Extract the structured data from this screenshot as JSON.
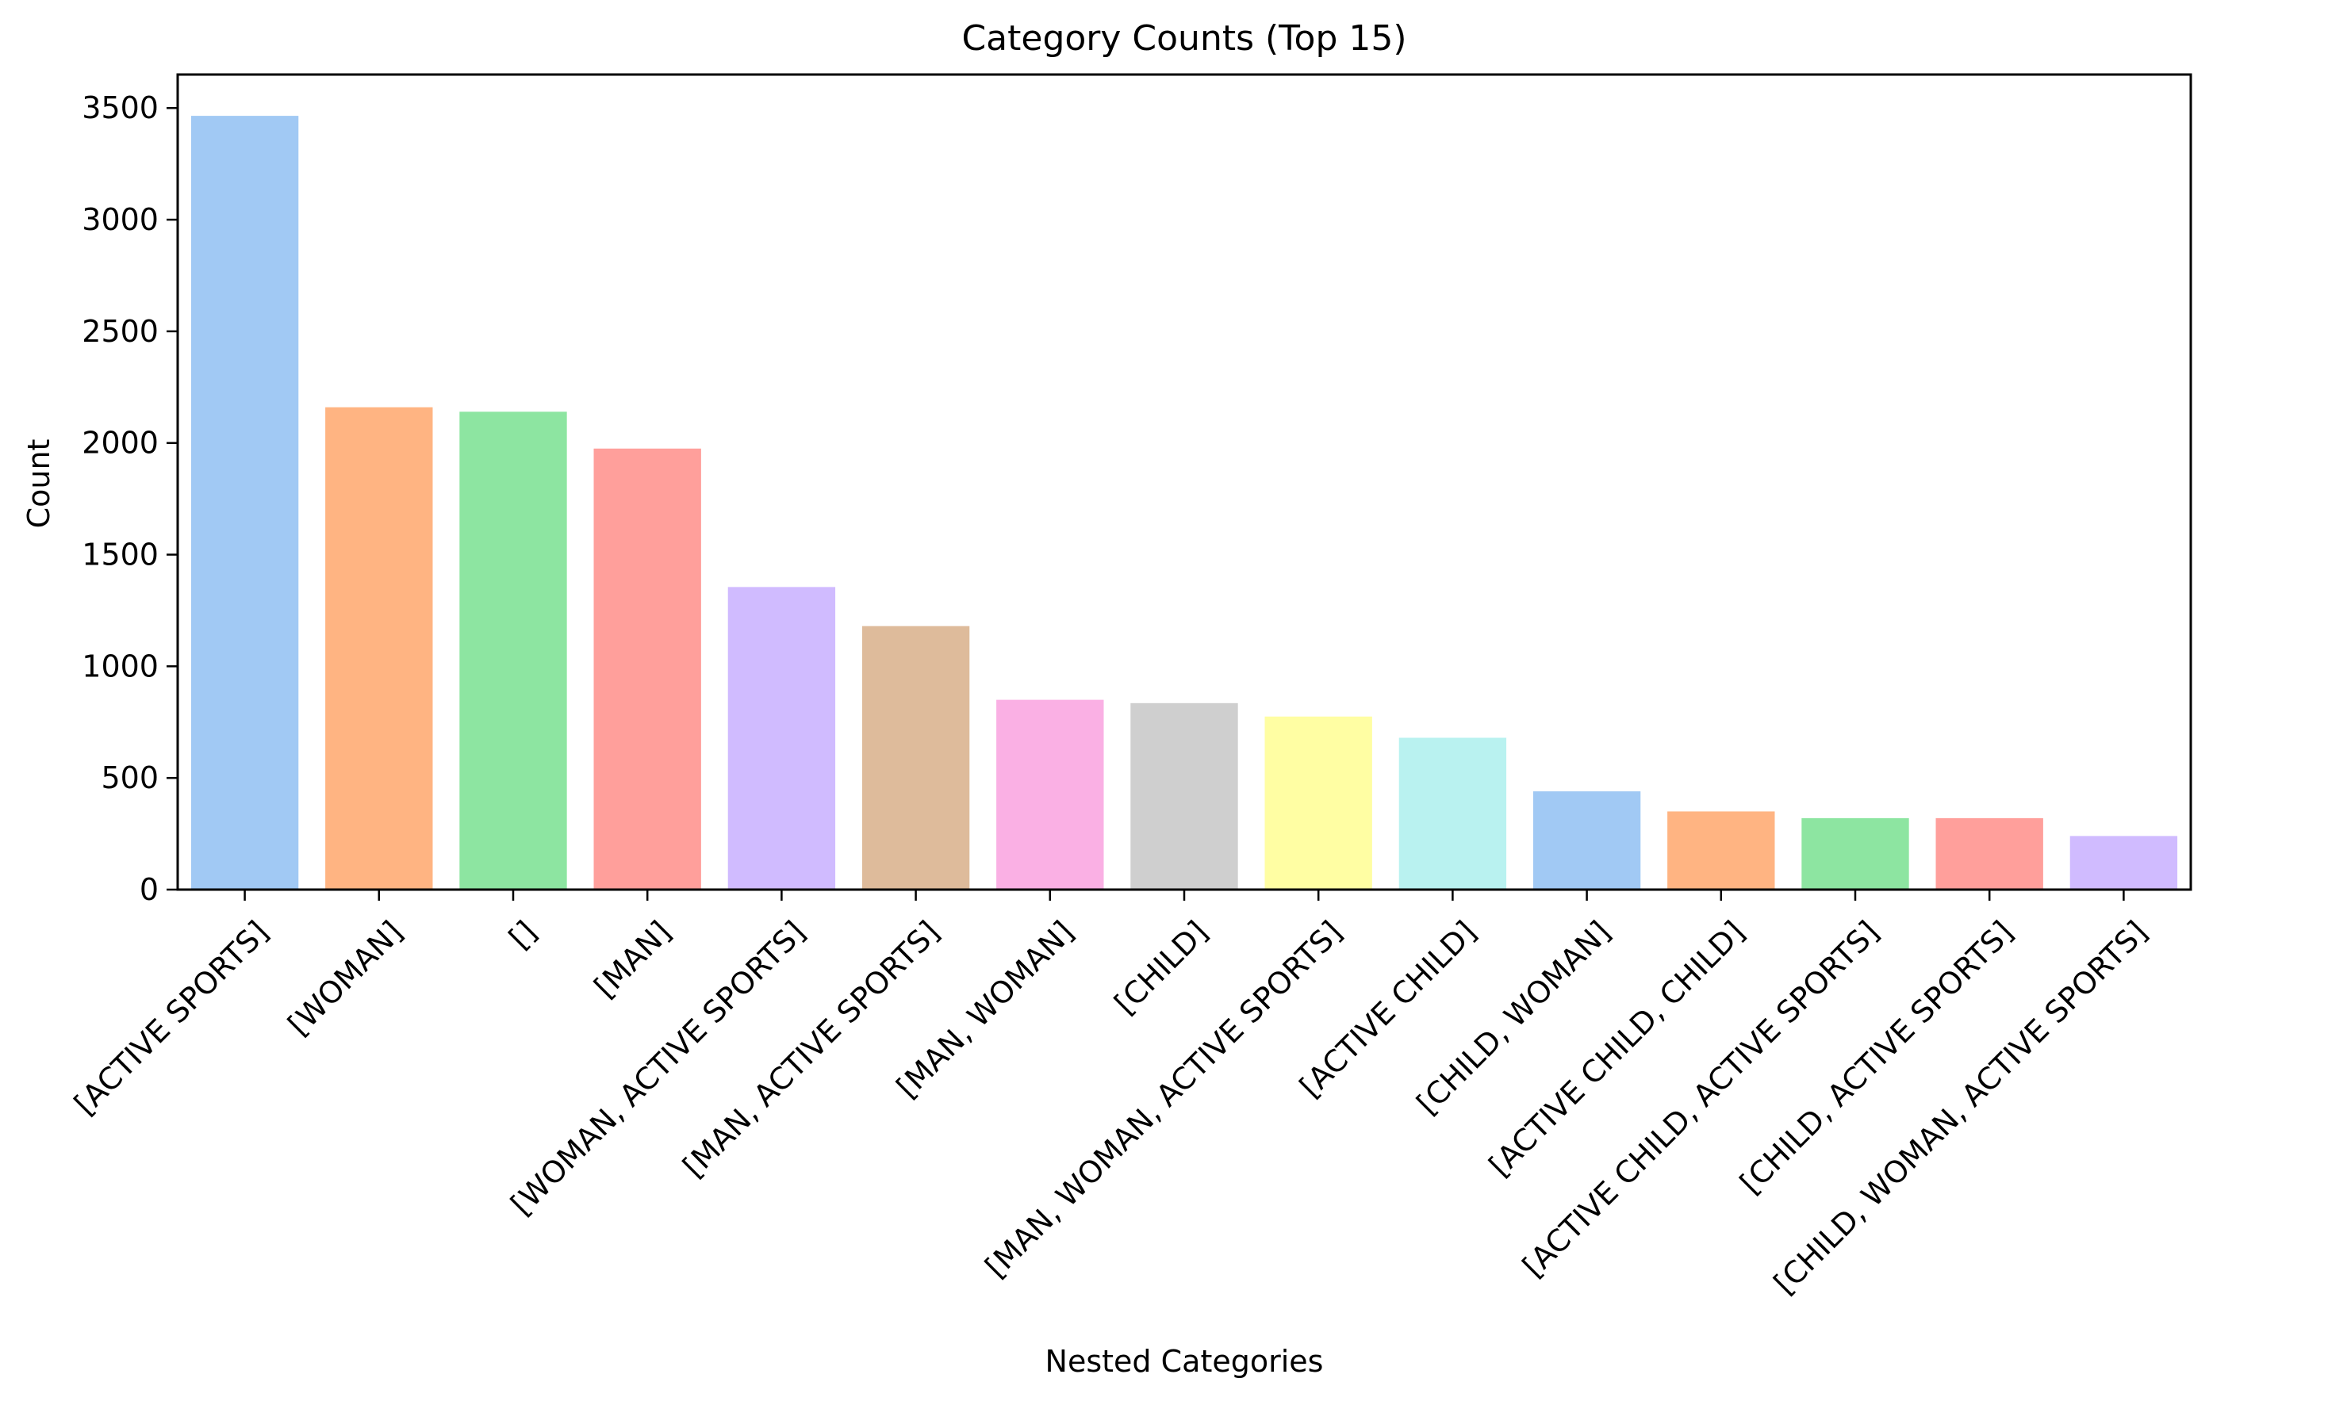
{
  "chart_data": {
    "type": "bar",
    "title": "Category Counts (Top 15)",
    "xlabel": "Nested Categories",
    "ylabel": "Count",
    "ylim": [
      0,
      3650
    ],
    "yticks": [
      0,
      500,
      1000,
      1500,
      2000,
      2500,
      3000,
      3500
    ],
    "grid": false,
    "categories": [
      "[ACTIVE SPORTS]",
      "[WOMAN]",
      "[]",
      "[MAN]",
      "[WOMAN, ACTIVE SPORTS]",
      "[MAN, ACTIVE SPORTS]",
      "[MAN, WOMAN]",
      "[CHILD]",
      "[MAN, WOMAN, ACTIVE SPORTS]",
      "[ACTIVE CHILD]",
      "[CHILD, WOMAN]",
      "[ACTIVE CHILD, CHILD]",
      "[ACTIVE CHILD, ACTIVE SPORTS]",
      "[CHILD, ACTIVE SPORTS]",
      "[CHILD, WOMAN, ACTIVE SPORTS]"
    ],
    "values": [
      3465,
      2160,
      2140,
      1975,
      1355,
      1180,
      850,
      835,
      775,
      680,
      440,
      350,
      320,
      320,
      240
    ],
    "colors": [
      "#a1c9f4",
      "#ffb482",
      "#8de5a1",
      "#ff9f9b",
      "#d0bbff",
      "#debb9b",
      "#fab0e4",
      "#cfcfcf",
      "#fffea3",
      "#b9f2f0",
      "#a1c9f4",
      "#ffb482",
      "#8de5a1",
      "#ff9f9b",
      "#d0bbff"
    ]
  }
}
